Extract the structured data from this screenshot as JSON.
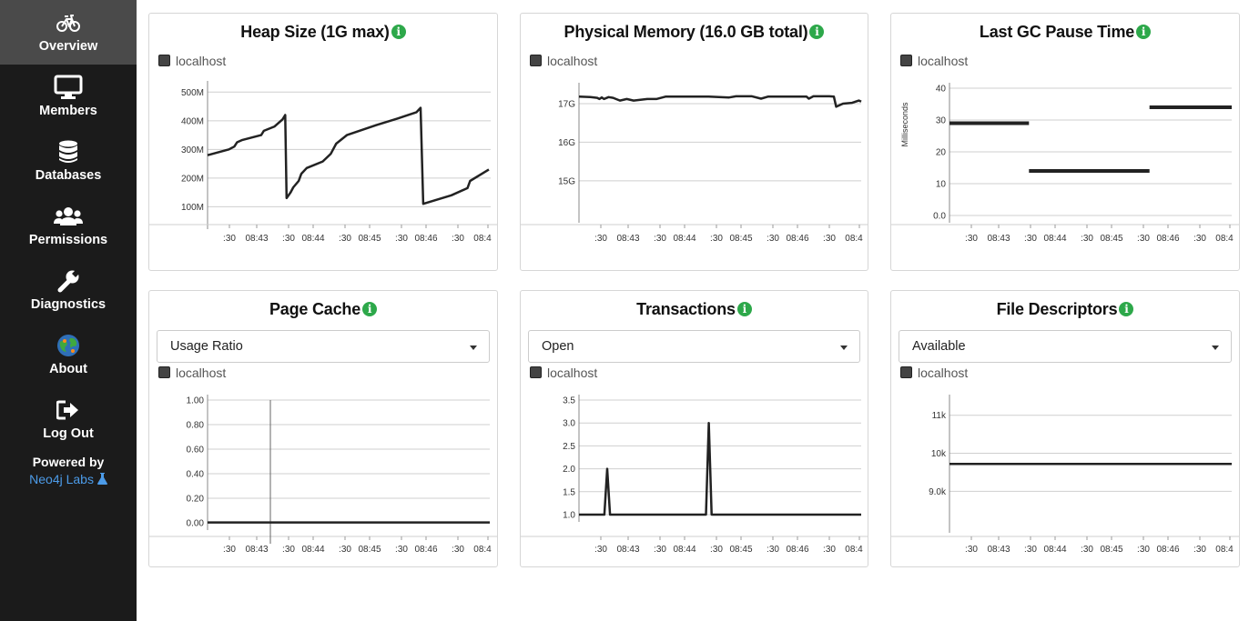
{
  "nav": {
    "items": [
      {
        "label": "Overview",
        "icon": "bicycle-icon",
        "active": true
      },
      {
        "label": "Members",
        "icon": "monitor-icon",
        "active": false
      },
      {
        "label": "Databases",
        "icon": "database-icon",
        "active": false
      },
      {
        "label": "Permissions",
        "icon": "users-icon",
        "active": false
      },
      {
        "label": "Diagnostics",
        "icon": "wrench-icon",
        "active": false
      },
      {
        "label": "About",
        "icon": "globe-icon",
        "active": false
      },
      {
        "label": "Log Out",
        "icon": "sign-out-icon",
        "active": false
      }
    ],
    "powered_by": "Powered by",
    "labs_link": "Neo4j Labs"
  },
  "colors": {
    "sidebar": "#1b1b1b",
    "active": "#4a4a4a",
    "info": "#2da84a",
    "link": "#4c9be8",
    "line": "#222222"
  },
  "chart_data": [
    {
      "id": "heap",
      "type": "line",
      "title": "Heap Size (1G max)",
      "legend": [
        "localhost"
      ],
      "select": null,
      "y_ticks": [
        "100M",
        "200M",
        "300M",
        "400M",
        "500M"
      ],
      "ylim": [
        60,
        520
      ],
      "ylabel": "",
      "x_ticks": [
        ":30",
        "08:43",
        ":30",
        "08:44",
        ":30",
        "08:45",
        ":30",
        "08:46",
        ":30",
        "08:4"
      ],
      "series": [
        {
          "name": "localhost",
          "points": [
            [
              0,
              280
            ],
            [
              8,
              300
            ],
            [
              10,
              310
            ],
            [
              11,
              325
            ],
            [
              13,
              333
            ],
            [
              20,
              350
            ],
            [
              21,
              365
            ],
            [
              25,
              380
            ],
            [
              28,
              405
            ],
            [
              29,
              420
            ],
            [
              29.5,
              130
            ],
            [
              31,
              150
            ],
            [
              32,
              168
            ],
            [
              34,
              190
            ],
            [
              35,
              215
            ],
            [
              37,
              235
            ],
            [
              43,
              258
            ],
            [
              46,
              285
            ],
            [
              48,
              320
            ],
            [
              52,
              350
            ],
            [
              63,
              385
            ],
            [
              71,
              408
            ],
            [
              78,
              430
            ],
            [
              79.5,
              445
            ],
            [
              80.5,
              110
            ],
            [
              91,
              140
            ],
            [
              97,
              165
            ],
            [
              98,
              190
            ],
            [
              105,
              230
            ]
          ]
        }
      ]
    },
    {
      "id": "physmem",
      "type": "line",
      "title": "Physical Memory (16.0 GB total)",
      "legend": [
        "localhost"
      ],
      "select": null,
      "y_ticks": [
        "15G",
        "16G",
        "17G"
      ],
      "ylim": [
        14.1,
        17.4
      ],
      "ylabel": "",
      "x_ticks": [
        ":30",
        "08:43",
        ":30",
        "08:44",
        ":30",
        "08:45",
        ":30",
        "08:46",
        ":30",
        "08:4"
      ],
      "series": [
        {
          "name": "localhost",
          "points": [
            [
              0,
              17.18
            ],
            [
              5,
              17.17
            ],
            [
              8,
              17.15
            ],
            [
              9,
              17.12
            ],
            [
              10,
              17.16
            ],
            [
              11,
              17.12
            ],
            [
              13,
              17.17
            ],
            [
              15,
              17.15
            ],
            [
              18,
              17.08
            ],
            [
              21,
              17.12
            ],
            [
              24,
              17.08
            ],
            [
              30,
              17.12
            ],
            [
              34,
              17.12
            ],
            [
              38,
              17.18
            ],
            [
              48,
              17.18
            ],
            [
              57,
              17.18
            ],
            [
              66,
              17.16
            ],
            [
              69,
              17.19
            ],
            [
              76,
              17.19
            ],
            [
              80,
              17.13
            ],
            [
              83,
              17.18
            ],
            [
              92,
              17.18
            ],
            [
              100,
              17.18
            ],
            [
              101,
              17.13
            ],
            [
              103,
              17.19
            ],
            [
              110,
              17.19
            ],
            [
              112,
              17.18
            ],
            [
              113,
              16.92
            ],
            [
              116,
              17.0
            ],
            [
              120,
              17.02
            ],
            [
              123,
              17.08
            ],
            [
              124,
              17.05
            ]
          ]
        }
      ]
    },
    {
      "id": "gcpause",
      "type": "line",
      "title": "Last GC Pause Time",
      "legend": [
        "localhost"
      ],
      "select": null,
      "y_ticks": [
        "0.0",
        "10",
        "20",
        "30",
        "40"
      ],
      "ylim": [
        0,
        40
      ],
      "ylabel": "Milliseconds",
      "x_ticks": [
        ":30",
        "08:43",
        ":30",
        "08:44",
        ":30",
        "08:45",
        ":30",
        "08:46",
        ":30",
        "08:4"
      ],
      "series": [
        {
          "name": "localhost",
          "points": [
            [
              0,
              29
            ],
            [
              28,
              29
            ]
          ],
          "segments": [
            [
              [
                0,
                29
              ],
              [
                29,
                29
              ]
            ],
            [
              [
                29,
                14
              ],
              [
                73,
                14
              ]
            ],
            [
              [
                73,
                34
              ],
              [
                103,
                34
              ]
            ]
          ]
        }
      ]
    },
    {
      "id": "pagecache",
      "type": "line",
      "title": "Page Cache",
      "legend": [
        "localhost"
      ],
      "select": "Usage Ratio",
      "y_ticks": [
        "0.00",
        "0.20",
        "0.40",
        "0.60",
        "0.80",
        "1.00"
      ],
      "ylim": [
        0,
        1.0
      ],
      "ylabel": "",
      "x_ticks": [
        ":30",
        "08:43",
        ":30",
        "08:44",
        ":30",
        "08:45",
        ":30",
        "08:46",
        ":30",
        "08:4"
      ],
      "series": [
        {
          "name": "localhost",
          "points": [
            [
              0,
              0.003
            ],
            [
              100,
              0.003
            ]
          ]
        }
      ]
    },
    {
      "id": "transactions",
      "type": "line",
      "title": "Transactions",
      "legend": [
        "localhost"
      ],
      "select": "Open",
      "y_ticks": [
        "1.0",
        "1.5",
        "2.0",
        "2.5",
        "3.0",
        "3.5"
      ],
      "ylim": [
        1.0,
        3.5
      ],
      "ylabel": "",
      "x_ticks": [
        ":30",
        "08:43",
        ":30",
        "08:44",
        ":30",
        "08:45",
        ":30",
        "08:46",
        ":30",
        "08:4"
      ],
      "series": [
        {
          "name": "localhost",
          "points": [
            [
              0,
              1
            ],
            [
              9,
              1
            ],
            [
              10,
              2
            ],
            [
              11,
              1
            ],
            [
              45,
              1
            ],
            [
              46,
              3
            ],
            [
              47,
              1
            ],
            [
              100,
              1
            ]
          ]
        }
      ]
    },
    {
      "id": "filedesc",
      "type": "line",
      "title": "File Descriptors",
      "legend": [
        "localhost"
      ],
      "select": "Available",
      "y_ticks": [
        "9.0k",
        "10k",
        "11k"
      ],
      "ylim": [
        8100,
        11400
      ],
      "ylabel": "",
      "x_ticks": [
        ":30",
        "08:43",
        ":30",
        "08:44",
        ":30",
        "08:45",
        ":30",
        "08:46",
        ":30",
        "08:4"
      ],
      "series": [
        {
          "name": "localhost",
          "points": [
            [
              0,
              9720
            ],
            [
              100,
              9720
            ]
          ]
        }
      ]
    }
  ]
}
